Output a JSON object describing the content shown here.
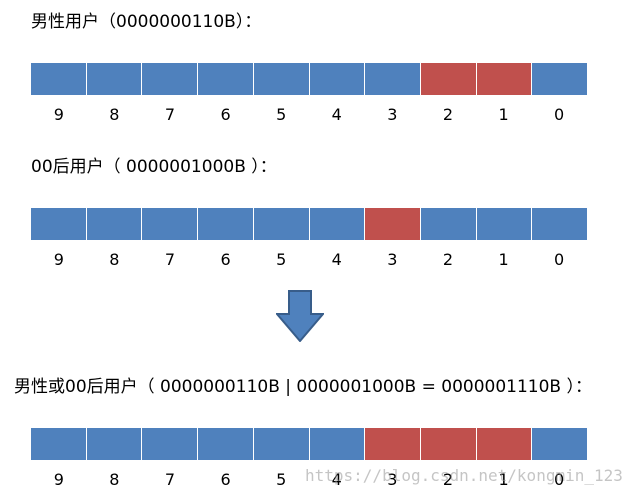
{
  "colors": {
    "off": "#4f81bd",
    "on": "#c0504d",
    "arrow": "#4f81bd",
    "arrow_border": "#385d8a"
  },
  "sections": [
    {
      "caption": "男性用户（0000000110B）：",
      "bits": [
        "0",
        "0",
        "0",
        "0",
        "0",
        "0",
        "0",
        "1",
        "1",
        "0"
      ],
      "labels": [
        "9",
        "8",
        "7",
        "6",
        "5",
        "4",
        "3",
        "2",
        "1",
        "0"
      ]
    },
    {
      "caption": "00后用户（ 0000001000B ）：",
      "bits": [
        "0",
        "0",
        "0",
        "0",
        "0",
        "0",
        "1",
        "0",
        "0",
        "0"
      ],
      "labels": [
        "9",
        "8",
        "7",
        "6",
        "5",
        "4",
        "3",
        "2",
        "1",
        "0"
      ]
    },
    {
      "caption": "男性或00后用户（ 0000000110B  | 0000001000B = 0000001110B ）：",
      "bits": [
        "0",
        "0",
        "0",
        "0",
        "0",
        "0",
        "1",
        "1",
        "1",
        "0"
      ],
      "labels": [
        "9",
        "8",
        "7",
        "6",
        "5",
        "4",
        "3",
        "2",
        "1",
        "0"
      ]
    }
  ],
  "arrow_icon": "down-arrow-icon",
  "watermark": "https://blog.csdn.net/kongmin_123"
}
